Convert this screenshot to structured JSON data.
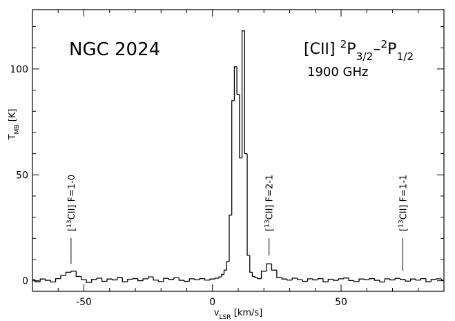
{
  "chart_data": {
    "type": "step",
    "annotations": [
      {
        "parts": [
          "NGC 2024"
        ]
      },
      {
        "parts": [
          "[CII] ",
          "2",
          "P",
          "3/2",
          "–",
          "2",
          "P",
          "1/2"
        ]
      },
      {
        "parts": [
          "1900 GHz"
        ]
      }
    ],
    "y_label": [
      "T",
      "MB",
      " [K]"
    ],
    "x_label": [
      "v",
      "LSR",
      " [km/s]"
    ],
    "line_markers": [
      {
        "x": -55,
        "label": [
          "[",
          "13",
          "CII] F=1-0"
        ]
      },
      {
        "x": 22,
        "label": [
          "[",
          "13",
          "CII] F=2-1"
        ]
      },
      {
        "x": 74,
        "label": [
          "[",
          "13",
          "CII] F=1-1"
        ]
      }
    ],
    "x": [
      -70,
      -68,
      -66,
      -64,
      -62,
      -60,
      -58,
      -56,
      -54,
      -52,
      -50,
      -48,
      -46,
      -44,
      -42,
      -40,
      -38,
      -36,
      -34,
      -32,
      -30,
      -28,
      -26,
      -24,
      -22,
      -20,
      -18,
      -16,
      -14,
      -12,
      -10,
      -8,
      -6,
      -4,
      -2,
      0,
      2,
      3,
      4,
      5,
      6,
      7,
      8,
      9,
      10,
      11,
      12,
      13,
      14,
      15,
      16,
      17,
      18,
      20,
      22,
      24,
      26,
      28,
      30,
      32,
      34,
      36,
      38,
      40,
      42,
      44,
      46,
      48,
      50,
      52,
      54,
      56,
      58,
      60,
      62,
      64,
      66,
      68,
      70,
      72,
      74,
      76,
      78,
      80,
      82,
      84,
      86,
      88,
      90
    ],
    "values": [
      0.5,
      -0.5,
      0.8,
      0.2,
      -0.6,
      1.0,
      2.5,
      4.0,
      4.5,
      2.0,
      0.5,
      -0.8,
      0.6,
      1.2,
      -0.3,
      0.8,
      0.4,
      1.5,
      -0.5,
      0.7,
      1.0,
      0.0,
      0.9,
      1.8,
      0.3,
      -0.4,
      1.1,
      0.6,
      1.4,
      0.2,
      -0.3,
      0.9,
      0.5,
      1.0,
      0.3,
      0.8,
      1.2,
      1.8,
      3,
      5,
      9,
      31,
      85,
      101,
      88,
      58,
      118,
      60,
      12,
      4,
      2,
      1.5,
      1.0,
      4.5,
      8.0,
      5.0,
      1.5,
      0.8,
      0.3,
      1.2,
      0.5,
      -0.3,
      0.9,
      0.4,
      1.0,
      -0.5,
      0.7,
      0.2,
      0.9,
      1.3,
      0.1,
      -0.4,
      0.8,
      0.5,
      1.0,
      0.2,
      -0.6,
      0.9,
      0.4,
      1.1,
      0.6,
      -0.2,
      0.8,
      0.3,
      1.0,
      -0.5,
      0.6,
      0.9,
      0.2
    ],
    "color": "#000000",
    "xlim": [
      -70,
      90
    ],
    "ylim": [
      -5,
      128
    ],
    "xticks": [
      -50,
      0,
      50
    ],
    "xminor_ticks": [
      -60,
      -40,
      -30,
      -20,
      -10,
      10,
      20,
      30,
      40,
      60,
      70,
      80
    ],
    "yticks": [
      0,
      50,
      100
    ],
    "yminor_ticks": [
      10,
      20,
      30,
      40,
      60,
      70,
      80,
      90,
      110,
      120
    ],
    "grid": false
  }
}
